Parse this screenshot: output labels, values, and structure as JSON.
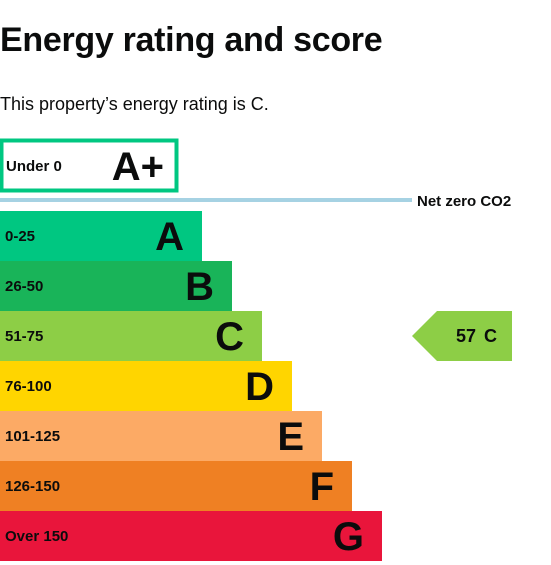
{
  "title": "Energy rating and score",
  "summary": "This property’s energy rating is C.",
  "chart_data": {
    "type": "bar",
    "top_band": {
      "range": "Under 0",
      "letter": "A+",
      "border_color": "#00c781"
    },
    "net_zero_label": "Net zero CO2",
    "net_zero_color": "#a6d2e3",
    "bands": [
      {
        "range": "0-25",
        "letter": "A",
        "color": "#00c781",
        "text": "dark"
      },
      {
        "range": "26-50",
        "letter": "B",
        "color": "#19b459",
        "text": "dark"
      },
      {
        "range": "51-75",
        "letter": "C",
        "color": "#8dce46",
        "text": "dark"
      },
      {
        "range": "76-100",
        "letter": "D",
        "color": "#ffd500",
        "text": "dark"
      },
      {
        "range": "101-125",
        "letter": "E",
        "color": "#fcaa65",
        "text": "dark"
      },
      {
        "range": "126-150",
        "letter": "F",
        "color": "#ef8023",
        "text": "dark"
      },
      {
        "range": "Over 150",
        "letter": "G",
        "color": "#e9153b",
        "text": "dark"
      }
    ],
    "current": {
      "score": "57",
      "letter": "C",
      "band_index": 2,
      "color": "#8dce46"
    }
  }
}
